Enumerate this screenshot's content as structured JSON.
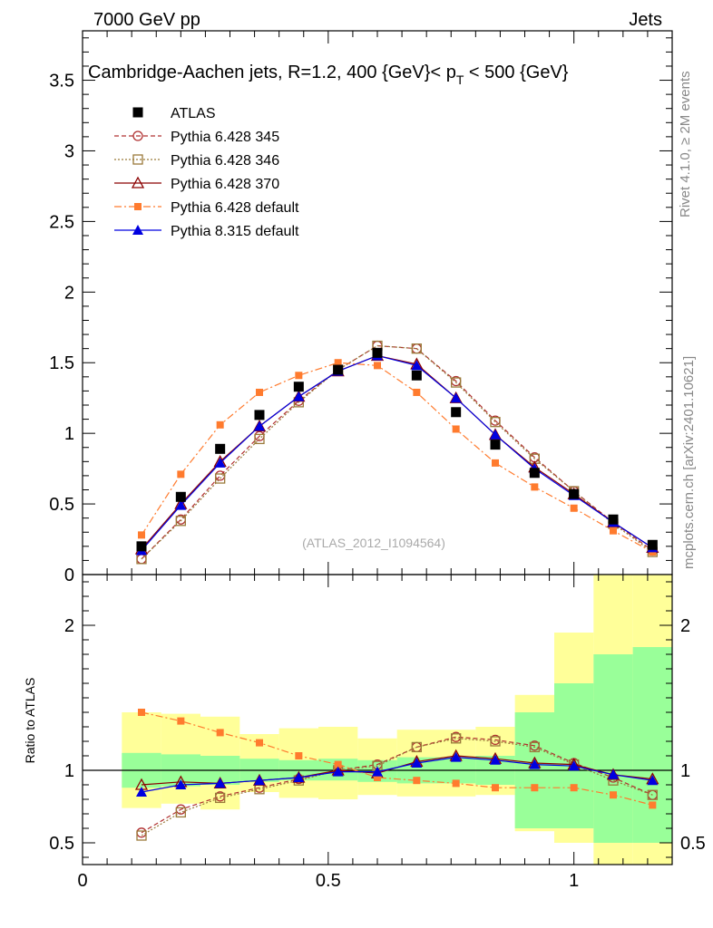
{
  "header": {
    "left": "7000 GeV pp",
    "right": "Jets"
  },
  "side_labels": {
    "rivet": "Rivet 4.1.0, ≥ 2M events",
    "mcplots": "mcplots.cern.ch [arXiv:2401.10621]"
  },
  "colors": {
    "atlas": "#000000",
    "py345": "#b03030",
    "py346": "#9a7a3a",
    "py370": "#8b0000",
    "py6def": "#ff7b2e",
    "py8def": "#0000e0",
    "band_inner": "#99ff99",
    "band_outer": "#ffff99"
  },
  "chart_data": [
    {
      "type": "line",
      "panel": "main",
      "title": "Cambridge-Aachen jets, R=1.2,  400 {GeV}< p_T < 500 {GeV}",
      "title_prefix": "Cambridge-Aachen jets, R=1.2,  400 {GeV}< p",
      "title_sub": "T",
      "title_suffix": " < 500 {GeV}",
      "watermark": "(ATLAS_2012_I1094564)",
      "xlim": [
        0,
        1.2
      ],
      "ylim": [
        0,
        3.85
      ],
      "y_ticks": [
        "0",
        "0.5",
        "1",
        "1.5",
        "2",
        "2.5",
        "3",
        "3.5"
      ],
      "y_tick_values": [
        0,
        0.5,
        1,
        1.5,
        2,
        2.5,
        3,
        3.5
      ],
      "x": [
        0.12,
        0.2,
        0.28,
        0.36,
        0.44,
        0.52,
        0.6,
        0.68,
        0.76,
        0.84,
        0.92,
        1.0,
        1.08,
        1.16
      ],
      "series": [
        {
          "key": "atlas",
          "name": "ATLAS",
          "values": [
            0.2,
            0.55,
            0.89,
            1.13,
            1.33,
            1.45,
            1.57,
            1.41,
            1.15,
            0.92,
            0.72,
            0.57,
            0.39,
            0.21
          ]
        },
        {
          "key": "py345",
          "name": "Pythia 6.428 345",
          "values": [
            0.11,
            0.39,
            0.7,
            0.98,
            1.23,
            1.45,
            1.62,
            1.6,
            1.37,
            1.09,
            0.83,
            0.59,
            0.37,
            0.17
          ]
        },
        {
          "key": "py346",
          "name": "Pythia 6.428 346",
          "values": [
            0.11,
            0.38,
            0.68,
            0.96,
            1.22,
            1.45,
            1.62,
            1.6,
            1.36,
            1.08,
            0.82,
            0.59,
            0.36,
            0.16
          ]
        },
        {
          "key": "py370",
          "name": "Pythia 6.428 370",
          "values": [
            0.18,
            0.5,
            0.8,
            1.05,
            1.26,
            1.44,
            1.55,
            1.49,
            1.25,
            0.99,
            0.76,
            0.57,
            0.37,
            0.19
          ]
        },
        {
          "key": "py6def",
          "name": "Pythia 6.428 default",
          "values": [
            0.28,
            0.71,
            1.06,
            1.29,
            1.41,
            1.5,
            1.48,
            1.29,
            1.03,
            0.79,
            0.62,
            0.47,
            0.31,
            0.16
          ]
        },
        {
          "key": "py8def",
          "name": "Pythia 8.315 default",
          "values": [
            0.17,
            0.49,
            0.79,
            1.05,
            1.26,
            1.44,
            1.55,
            1.48,
            1.25,
            0.99,
            0.75,
            0.56,
            0.37,
            0.19
          ]
        }
      ]
    },
    {
      "type": "line",
      "panel": "ratio",
      "ylabel": "Ratio to ATLAS",
      "xlim": [
        0,
        1.2
      ],
      "ylim": [
        0.35,
        2.35
      ],
      "y_ticks": [
        "0.5",
        "1",
        "2"
      ],
      "y_tick_values": [
        0.5,
        1,
        2
      ],
      "x_ticks": [
        "0",
        "0.5",
        "1"
      ],
      "x_tick_values": [
        0,
        0.5,
        1
      ],
      "bin_edges": [
        0.08,
        0.16,
        0.24,
        0.32,
        0.4,
        0.48,
        0.56,
        0.64,
        0.72,
        0.8,
        0.88,
        0.96,
        1.04,
        1.12,
        1.2
      ],
      "band_inner": [
        [
          0.88,
          1.12
        ],
        [
          0.89,
          1.11
        ],
        [
          0.9,
          1.1
        ],
        [
          0.92,
          1.08
        ],
        [
          0.93,
          1.07
        ],
        [
          0.93,
          1.08
        ],
        [
          0.92,
          1.07
        ],
        [
          0.91,
          1.09
        ],
        [
          0.91,
          1.09
        ],
        [
          0.9,
          1.1
        ],
        [
          0.6,
          1.4
        ],
        [
          0.6,
          1.6
        ],
        [
          0.5,
          1.8
        ],
        [
          0.5,
          1.85
        ]
      ],
      "band_outer": [
        [
          0.74,
          1.4
        ],
        [
          0.77,
          1.39
        ],
        [
          0.73,
          1.37
        ],
        [
          0.85,
          1.25
        ],
        [
          0.81,
          1.29
        ],
        [
          0.8,
          1.3
        ],
        [
          0.83,
          1.22
        ],
        [
          0.82,
          1.28
        ],
        [
          0.82,
          1.28
        ],
        [
          0.83,
          1.3
        ],
        [
          0.58,
          1.52
        ],
        [
          0.5,
          1.95
        ],
        [
          0.3,
          2.4
        ],
        [
          0.3,
          2.4
        ]
      ],
      "x": [
        0.12,
        0.2,
        0.28,
        0.36,
        0.44,
        0.52,
        0.6,
        0.68,
        0.76,
        0.84,
        0.92,
        1.0,
        1.08,
        1.16
      ],
      "series": [
        {
          "key": "py345",
          "name": "Pythia 6.428 345",
          "values": [
            0.57,
            0.73,
            0.82,
            0.88,
            0.94,
            1.0,
            1.04,
            1.16,
            1.23,
            1.21,
            1.17,
            1.05,
            0.95,
            0.83
          ]
        },
        {
          "key": "py346",
          "name": "Pythia 6.428 346",
          "values": [
            0.55,
            0.71,
            0.81,
            0.87,
            0.93,
            1.0,
            1.03,
            1.16,
            1.22,
            1.2,
            1.16,
            1.04,
            0.93,
            0.83
          ]
        },
        {
          "key": "py370",
          "name": "Pythia 6.428 370",
          "values": [
            0.9,
            0.92,
            0.91,
            0.93,
            0.95,
            1.0,
            0.98,
            1.06,
            1.1,
            1.08,
            1.05,
            1.04,
            0.97,
            0.94
          ]
        },
        {
          "key": "py6def",
          "name": "Pythia 6.428 default",
          "values": [
            1.4,
            1.34,
            1.26,
            1.19,
            1.1,
            1.04,
            0.95,
            0.93,
            0.91,
            0.88,
            0.88,
            0.88,
            0.83,
            0.76
          ]
        },
        {
          "key": "py8def",
          "name": "Pythia 8.315 default",
          "values": [
            0.85,
            0.9,
            0.91,
            0.93,
            0.95,
            0.99,
            0.99,
            1.05,
            1.09,
            1.07,
            1.04,
            1.03,
            0.97,
            0.93
          ]
        }
      ]
    }
  ]
}
